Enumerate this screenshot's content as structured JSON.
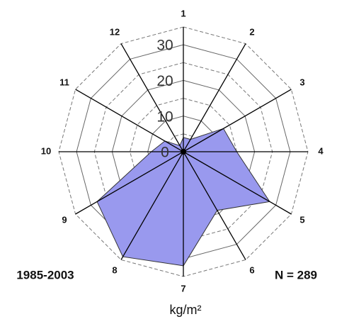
{
  "chart_data": {
    "type": "radar",
    "categories": [
      "1",
      "2",
      "3",
      "4",
      "5",
      "6",
      "7",
      "8",
      "9",
      "10",
      "11",
      "12"
    ],
    "values": [
      4,
      4,
      13,
      15,
      28,
      19,
      32,
      34,
      28,
      9,
      6,
      2
    ],
    "color": "#9999ee",
    "ylim": [
      0,
      35
    ],
    "yticks": [
      0,
      10,
      20,
      30
    ],
    "minor_ticks": [
      5,
      15,
      25,
      35
    ],
    "axis_label": "kg/m²",
    "annotations": [
      "1985-2003",
      "N = 289"
    ],
    "grid": true
  }
}
